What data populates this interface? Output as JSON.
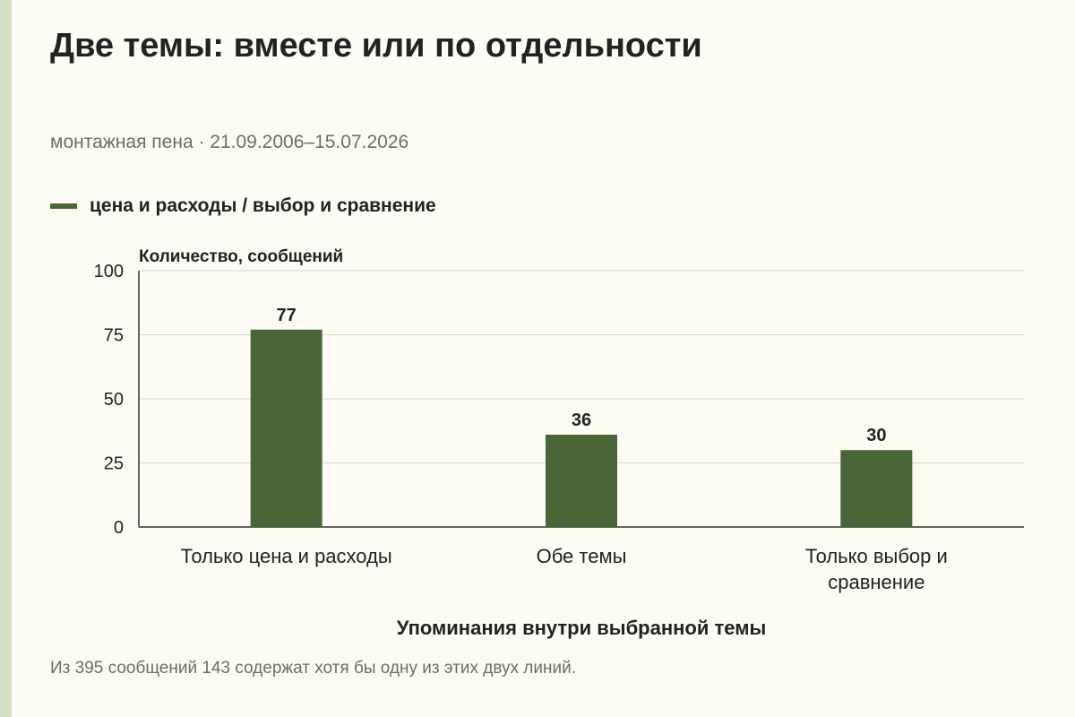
{
  "title": "Две темы: вместе или по отдельности",
  "subtitle": "монтажная пена · 21.09.2006–15.07.2026",
  "legend": {
    "label": "цена и расходы / выбор и сравнение"
  },
  "footnote": "Из 395 сообщений 143 содержат хотя бы одну из этих двух линий.",
  "colors": {
    "bar": "#4a6538",
    "grid": "#d9d9d4",
    "axis": "#333333",
    "accent_strip": "#d5e1c4",
    "background": "#fcfbf4"
  },
  "chart_data": {
    "type": "bar",
    "categories": [
      [
        "Только цена и расходы"
      ],
      [
        "Обе темы"
      ],
      [
        "Только выбор и",
        "сравнение"
      ]
    ],
    "series": [
      {
        "name": "цена и расходы / выбор и сравнение",
        "values": [
          77,
          36,
          30
        ]
      }
    ],
    "ylabel": "Количество, сообщений",
    "xlabel": "Упоминания внутри выбранной темы",
    "ylim": [
      0,
      100
    ],
    "yticks": [
      0,
      25,
      50,
      75,
      100
    ],
    "grid": true,
    "legend_position": "top-left",
    "data_labels": true
  }
}
